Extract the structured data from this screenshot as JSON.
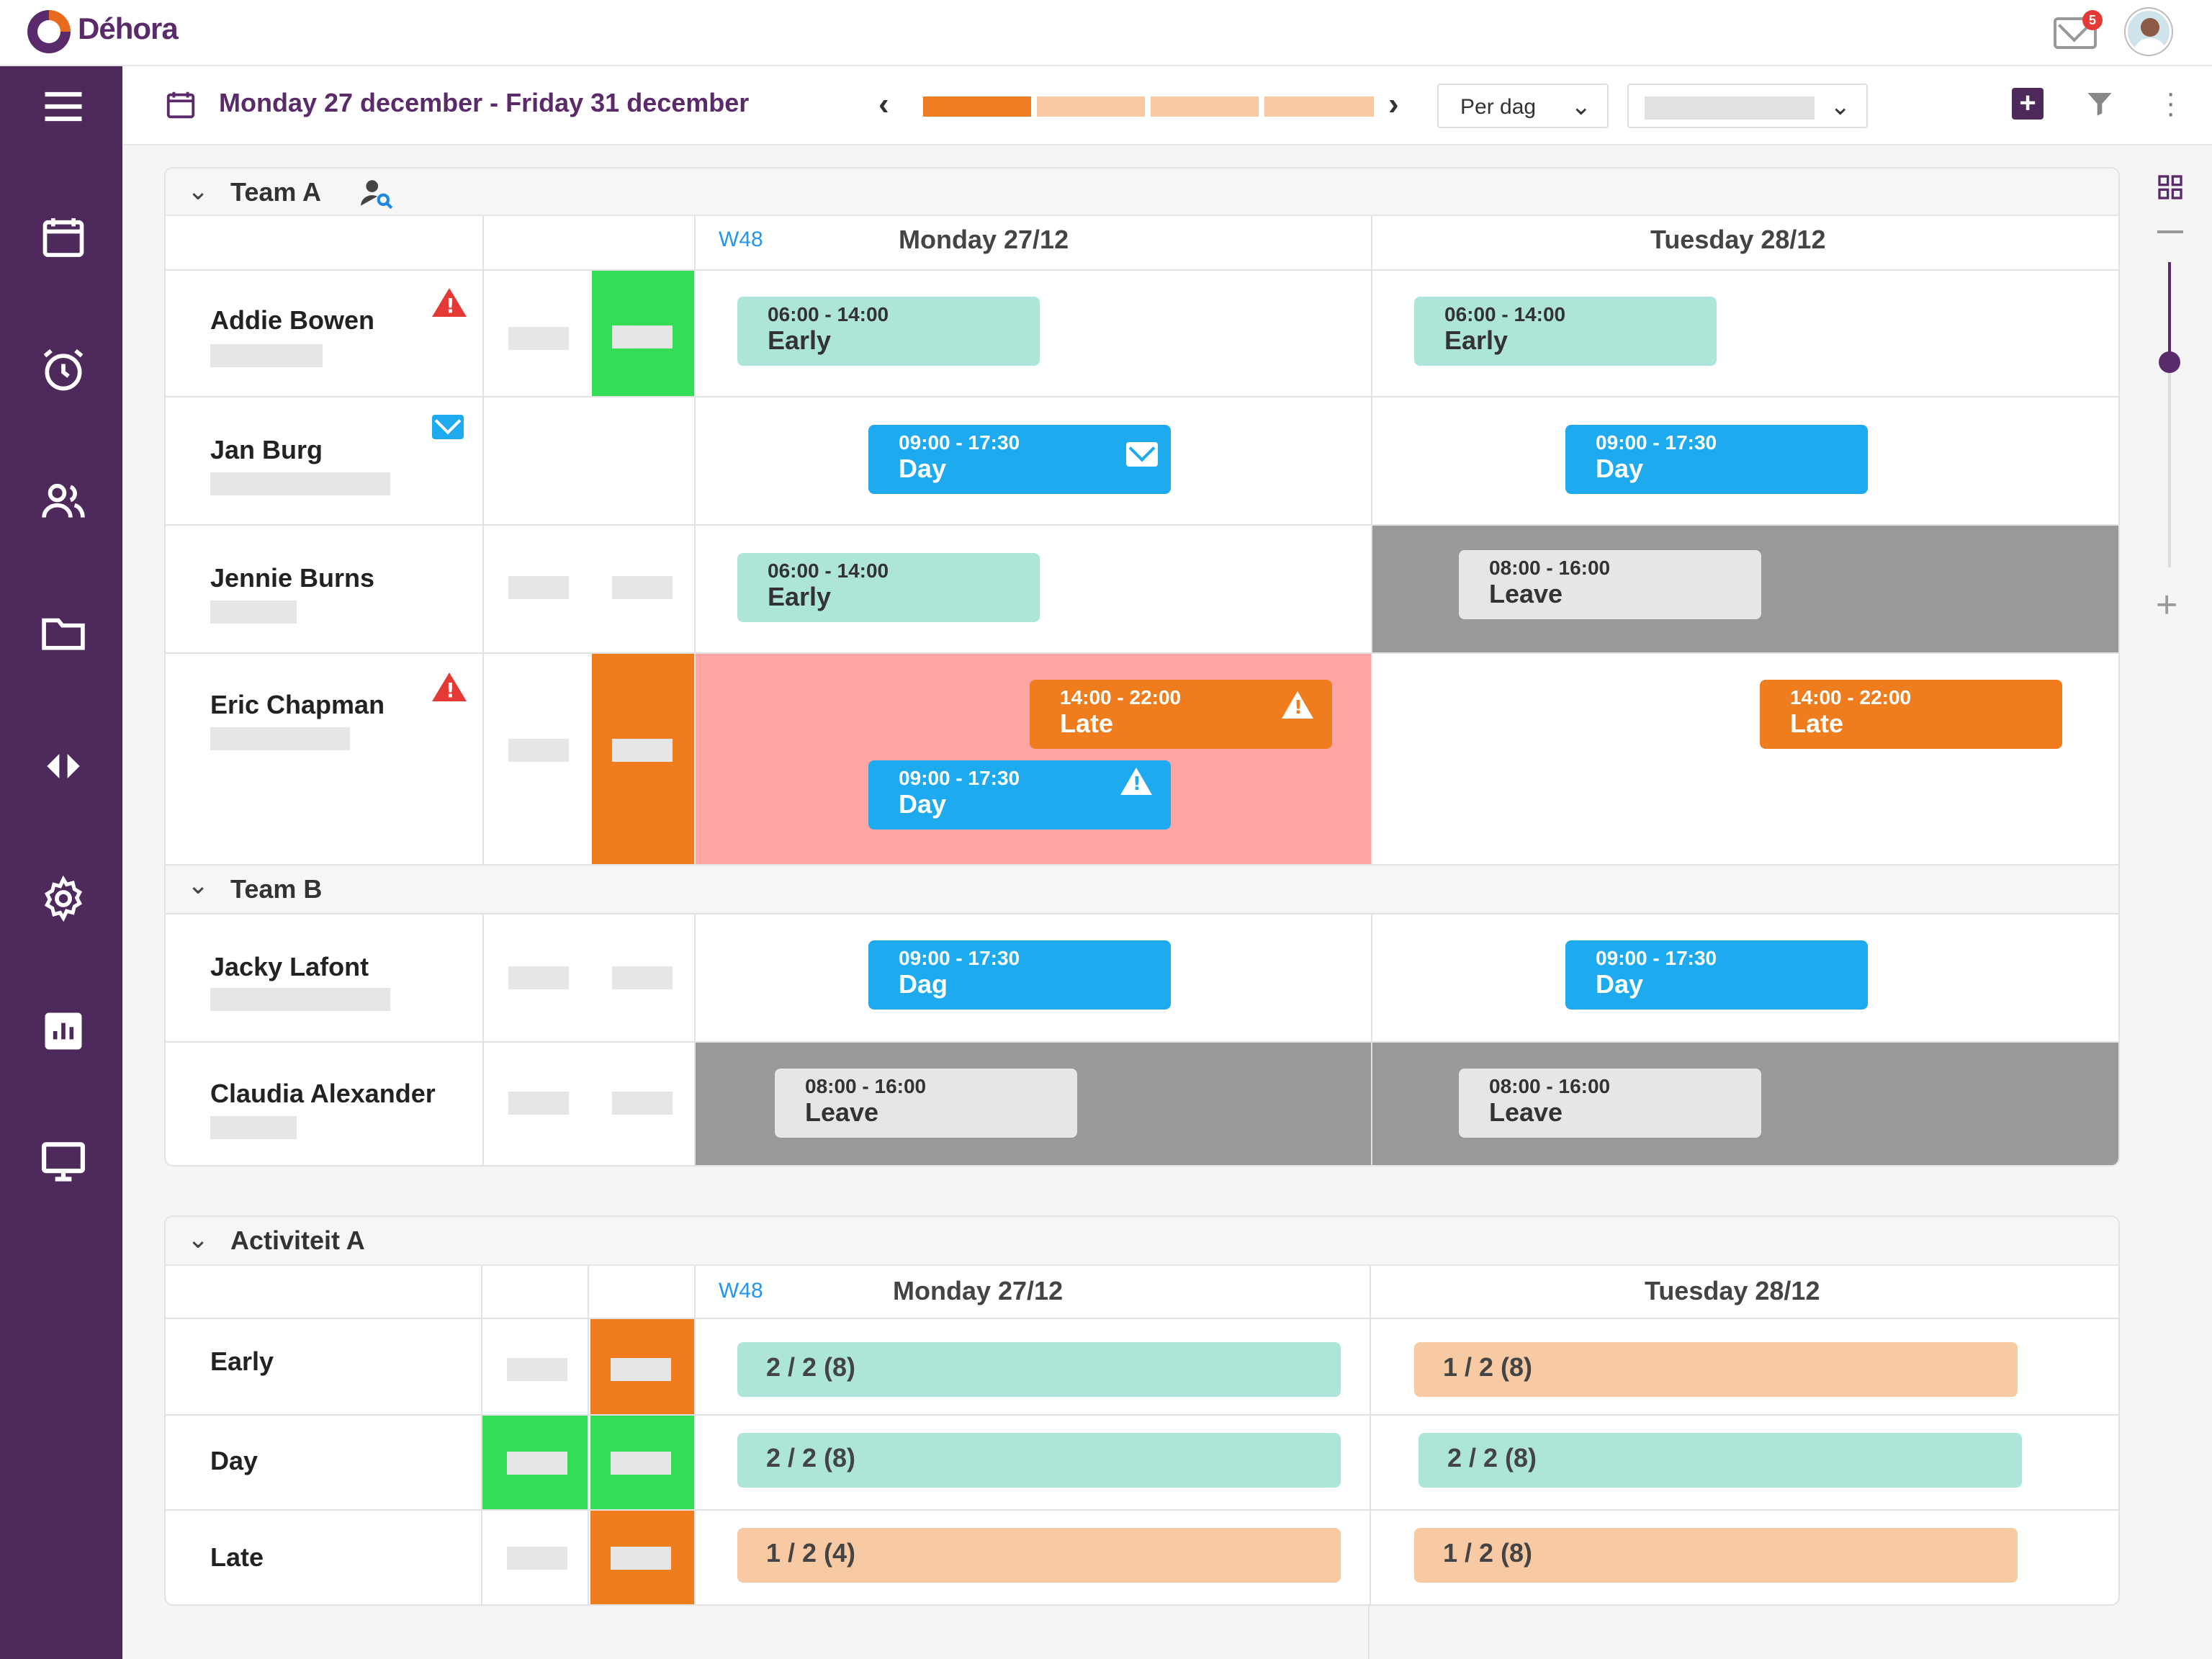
{
  "app": {
    "brand": "Déhora",
    "mail_badge": "5"
  },
  "toolbar": {
    "date_range": "Monday 27 december -  Friday 31 december",
    "view_select": "Per dag",
    "plus_label": "+"
  },
  "sidebar": {
    "items": [
      "menu-icon",
      "calendar-icon",
      "alarm-clock-icon",
      "people-icon",
      "folder-icon",
      "code-arrows-icon",
      "settings-icon",
      "bar-chart-icon",
      "monitor-icon"
    ]
  },
  "colors": {
    "brand_purple": "#4e2a5c",
    "early": "#ade5d9",
    "day": "#1eaaef",
    "late": "#ef7d1e",
    "leave_bg": "#999999",
    "warning_red": "#e53935",
    "understaffed_bg": "#fda5a5",
    "ok_green": "#33dd55"
  },
  "schedule": {
    "team_a": "Team A",
    "team_b": "Team B",
    "week": "W48",
    "day1": "Monday 27/12",
    "day2": "Tuesday 28/12",
    "employees": [
      {
        "name": "Addie Bowen",
        "day1": {
          "time": "06:00 - 14:00",
          "label": "Early"
        },
        "day2": {
          "time": "06:00 - 14:00",
          "label": "Early"
        }
      },
      {
        "name": "Jan Burg",
        "day1": {
          "time": "09:00 - 17:30",
          "label": "Day"
        },
        "day2": {
          "time": "09:00 - 17:30",
          "label": "Day"
        }
      },
      {
        "name": "Jennie Burns",
        "day1": {
          "time": "06:00 - 14:00",
          "label": "Early"
        },
        "day2": {
          "time": "08:00 - 16:00",
          "label": "Leave"
        }
      },
      {
        "name": "Eric Chapman",
        "day1a": {
          "time": "14:00 - 22:00",
          "label": "Late"
        },
        "day1b": {
          "time": "09:00 - 17:30",
          "label": "Day"
        },
        "day2": {
          "time": "14:00 - 22:00",
          "label": "Late"
        }
      },
      {
        "name": "Jacky Lafont",
        "day1": {
          "time": "09:00 - 17:30",
          "label": "Dag"
        },
        "day2": {
          "time": "09:00 - 17:30",
          "label": "Day"
        }
      },
      {
        "name": "Claudia Alexander",
        "day1": {
          "time": "08:00 - 16:00",
          "label": "Leave"
        },
        "day2": {
          "time": "08:00 - 16:00",
          "label": "Leave"
        }
      }
    ]
  },
  "activity": {
    "title": "Activiteit A",
    "week": "W48",
    "day1": "Monday 27/12",
    "day2": "Tuesday 28/12",
    "rows": [
      {
        "name": "Early",
        "day1": "2 / 2 (8)",
        "day2": "1 / 2 (8)"
      },
      {
        "name": "Day",
        "day1": "2 / 2 (8)",
        "day2": "2 / 2 (8)"
      },
      {
        "name": "Late",
        "day1": "1 / 2 (4)",
        "day2": "1 / 2 (8)"
      }
    ]
  }
}
